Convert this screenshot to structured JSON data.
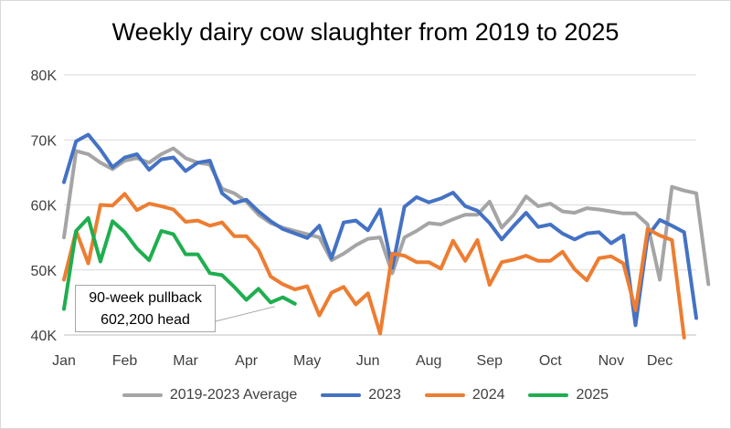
{
  "chart_data": {
    "type": "line",
    "title": "Weekly dairy cow slaughter from 2019 to 2025",
    "xlabel": "",
    "ylabel": "",
    "ylim": [
      40000,
      80000
    ],
    "y_ticks": [
      40000,
      50000,
      60000,
      70000,
      80000
    ],
    "y_tick_labels": [
      "40K",
      "50K",
      "60K",
      "70K",
      "80K"
    ],
    "x_range": [
      1,
      53
    ],
    "x_ticks": [
      1,
      6,
      11,
      16,
      21,
      26,
      31,
      36,
      41,
      46,
      50
    ],
    "x_tick_labels": [
      "Jan",
      "Feb",
      "Mar",
      "Apr",
      "May",
      "Jun",
      "Aug",
      "Sep",
      "Oct",
      "Nov",
      "Dec"
    ],
    "grid": true,
    "legend_position": "bottom",
    "annotation": {
      "line1": "90-week pullback",
      "line2": "602,200 head"
    },
    "series": [
      {
        "name": "2019-2023 Average",
        "color": "#a5a5a5",
        "values": [
          55000,
          68300,
          67800,
          66500,
          65500,
          66800,
          67200,
          66500,
          67800,
          68700,
          67200,
          66500,
          66200,
          62500,
          61800,
          60500,
          58500,
          57200,
          56500,
          56000,
          55500,
          55000,
          51500,
          52500,
          53800,
          54800,
          55000,
          49500,
          55000,
          56000,
          57200,
          57000,
          57800,
          58500,
          58500,
          60500,
          56500,
          58500,
          61300,
          59800,
          60200,
          59000,
          58800,
          59500,
          59300,
          59000,
          58700,
          58700,
          57000,
          48500,
          62800,
          62200,
          61800,
          47800
        ]
      },
      {
        "name": "2023",
        "color": "#4472c4",
        "values": [
          63500,
          69800,
          70800,
          68500,
          65800,
          67300,
          67800,
          65400,
          67000,
          67300,
          65200,
          66500,
          66800,
          61800,
          60300,
          60800,
          59000,
          57500,
          56300,
          55600,
          54900,
          56800,
          51800,
          57300,
          57600,
          56100,
          59300,
          50300,
          59700,
          61200,
          60400,
          61000,
          61900,
          59800,
          59100,
          57200,
          54700,
          56800,
          58800,
          56600,
          57000,
          55600,
          54700,
          55600,
          55800,
          54100,
          55300,
          41500,
          55200,
          57700,
          56800,
          55800,
          42600
        ]
      },
      {
        "name": "2024",
        "color": "#ed7d31",
        "values": [
          48500,
          56000,
          51000,
          60000,
          59900,
          61700,
          59200,
          60200,
          59800,
          59300,
          57400,
          57600,
          56800,
          57300,
          55200,
          55200,
          53100,
          49000,
          47800,
          47000,
          47500,
          43000,
          46500,
          47400,
          44700,
          46400,
          40200,
          52500,
          52200,
          51200,
          51200,
          50200,
          54500,
          51400,
          54600,
          47700,
          51200,
          51600,
          52200,
          51400,
          51400,
          52800,
          50100,
          48400,
          51800,
          52100,
          51000,
          43800,
          56300,
          55300,
          54600,
          39600
        ]
      },
      {
        "name": "2025",
        "color": "#1fae4f",
        "values": [
          44000,
          56000,
          58000,
          51300,
          57500,
          55800,
          53300,
          51500,
          56000,
          55500,
          52400,
          52400,
          49500,
          49200,
          47400,
          45400,
          47100,
          45000,
          45800,
          44800
        ]
      }
    ]
  }
}
